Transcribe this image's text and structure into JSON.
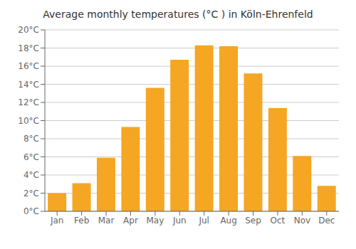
{
  "chart_data": {
    "type": "bar",
    "title": "Average monthly temperatures (°C ) in Köln-Ehrenfeld",
    "categories": [
      "Jan",
      "Feb",
      "Mar",
      "Apr",
      "May",
      "Jun",
      "Jul",
      "Aug",
      "Sep",
      "Oct",
      "Nov",
      "Dec"
    ],
    "values": [
      2.0,
      3.1,
      5.9,
      9.3,
      13.6,
      16.7,
      18.3,
      18.2,
      15.2,
      11.4,
      6.1,
      2.8
    ],
    "color": "#F5A623",
    "ylim": [
      0,
      20
    ],
    "yticks": [
      {
        "value": 0,
        "label": "0°C"
      },
      {
        "value": 2,
        "label": "2°C"
      },
      {
        "value": 4,
        "label": "4°C"
      },
      {
        "value": 6,
        "label": "6°C"
      },
      {
        "value": 8,
        "label": "8°C"
      },
      {
        "value": 10,
        "label": "10°C"
      },
      {
        "value": 12,
        "label": "12°C"
      },
      {
        "value": 14,
        "label": "14°C"
      },
      {
        "value": 16,
        "label": "16°C"
      },
      {
        "value": 18,
        "label": "18°C"
      },
      {
        "value": 20,
        "label": "20°C"
      }
    ],
    "grid": true
  }
}
